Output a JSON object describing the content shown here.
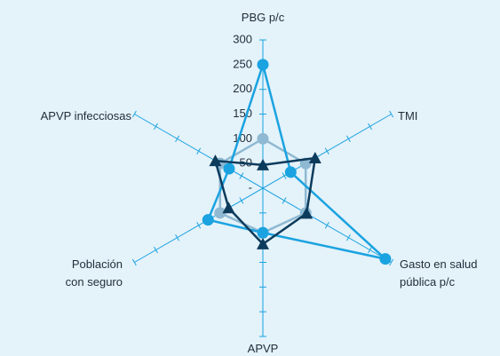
{
  "chart_data": {
    "type": "radar",
    "categories": [
      "PBG p/c",
      "TMI",
      "Gasto en salud\npública p/c",
      "APVP",
      "Población\ncon seguro",
      "APVP infecciosas"
    ],
    "ylim": [
      0,
      300
    ],
    "yticks": [
      {
        "value": 0,
        "label": "-"
      },
      50,
      100,
      150,
      200,
      250,
      300
    ],
    "series": [
      {
        "color": "#8fb9d2",
        "marker": "circle",
        "values": [
          100,
          100,
          100,
          90,
          100,
          100
        ]
      },
      {
        "color": "#1aa3e0",
        "marker": "circle",
        "values": [
          250,
          65,
          286,
          90,
          128,
          79
        ]
      },
      {
        "color": "#0d3b5c",
        "marker": "triangle",
        "values": [
          47,
          122,
          102,
          113,
          80,
          111
        ]
      }
    ]
  }
}
